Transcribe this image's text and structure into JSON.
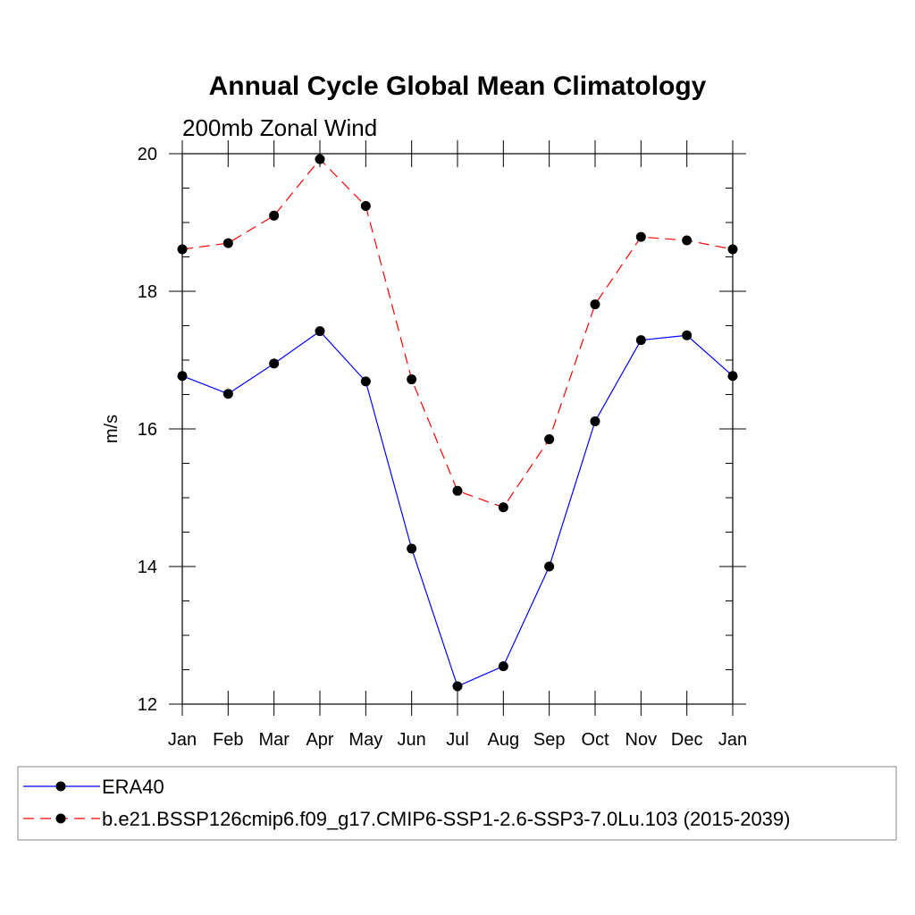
{
  "chart_data": {
    "type": "line",
    "title": "Annual Cycle Global Mean Climatology",
    "subtitle": "200mb Zonal Wind",
    "xlabel": "",
    "ylabel": "m/s",
    "categories": [
      "Jan",
      "Feb",
      "Mar",
      "Apr",
      "May",
      "Jun",
      "Jul",
      "Aug",
      "Sep",
      "Oct",
      "Nov",
      "Dec",
      "Jan"
    ],
    "ylim": [
      12,
      20
    ],
    "yticks": [
      12,
      14,
      16,
      18,
      20
    ],
    "grid": false,
    "legend_position": "bottom",
    "series": [
      {
        "name": "ERA40",
        "color": "#0000ff",
        "dash": "solid",
        "values": [
          16.77,
          16.51,
          16.95,
          17.42,
          16.69,
          14.26,
          12.26,
          12.55,
          14.0,
          16.11,
          17.29,
          17.36,
          16.77
        ]
      },
      {
        "name": "b.e21.BSSP126cmip6.f09_g17.CMIP6-SSP1-2.6-SSP3-7.0Lu.103 (2015-2039)",
        "color": "#ff0000",
        "dash": "dashed",
        "values": [
          18.61,
          18.7,
          19.1,
          19.92,
          19.24,
          16.72,
          15.1,
          14.86,
          15.85,
          17.81,
          18.79,
          18.74,
          18.61
        ]
      }
    ]
  }
}
